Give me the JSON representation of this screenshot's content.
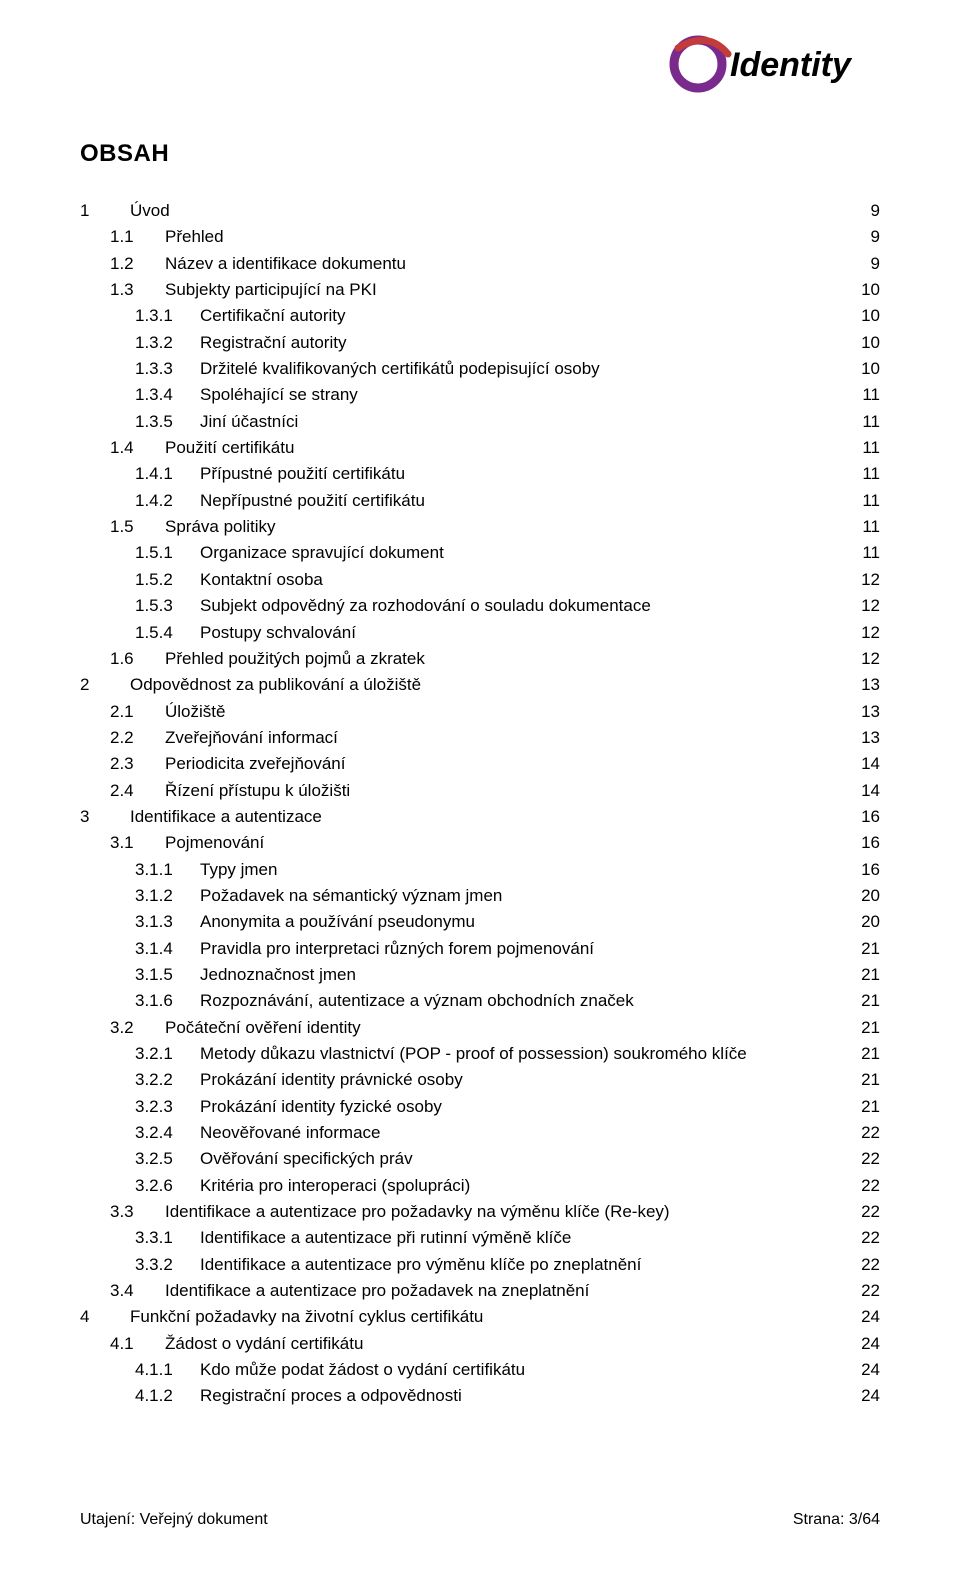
{
  "logo": {
    "brand_text": "Identity",
    "ring_color": "#7a2a8c",
    "swoosh_color": "#c43b3b",
    "text_color": "#000000",
    "font_style_italic": true,
    "font_weight": "bold",
    "font_size_pt": 28
  },
  "heading": "OBSAH",
  "typography": {
    "body_font_size_pt": 12.5,
    "heading_font_size_pt": 18,
    "font_family": "Arial",
    "text_color": "#000000",
    "background_color": "#ffffff"
  },
  "toc_entries": [
    {
      "indent": 0,
      "num": "1",
      "title": "Úvod",
      "page": "9"
    },
    {
      "indent": 1,
      "num": "1.1",
      "title": "Přehled",
      "page": "9"
    },
    {
      "indent": 1,
      "num": "1.2",
      "title": "Název a identifikace dokumentu",
      "page": "9"
    },
    {
      "indent": 1,
      "num": "1.3",
      "title": "Subjekty participující na PKI",
      "page": "10"
    },
    {
      "indent": 2,
      "num": "1.3.1",
      "title": "Certifikační autority",
      "page": "10"
    },
    {
      "indent": 2,
      "num": "1.3.2",
      "title": "Registrační autority",
      "page": "10"
    },
    {
      "indent": 2,
      "num": "1.3.3",
      "title": "Držitelé kvalifikovaných certifikátů podepisující osoby",
      "page": "10"
    },
    {
      "indent": 2,
      "num": "1.3.4",
      "title": "Spoléhající se strany",
      "page": "11"
    },
    {
      "indent": 2,
      "num": "1.3.5",
      "title": "Jiní účastníci",
      "page": "11"
    },
    {
      "indent": 1,
      "num": "1.4",
      "title": "Použití certifikátu",
      "page": "11"
    },
    {
      "indent": 2,
      "num": "1.4.1",
      "title": "Přípustné použití certifikátu",
      "page": "11"
    },
    {
      "indent": 2,
      "num": "1.4.2",
      "title": "Nepřípustné použití certifikátu",
      "page": "11"
    },
    {
      "indent": 1,
      "num": "1.5",
      "title": "Správa politiky",
      "page": "11"
    },
    {
      "indent": 2,
      "num": "1.5.1",
      "title": "Organizace spravující dokument",
      "page": "11"
    },
    {
      "indent": 2,
      "num": "1.5.2",
      "title": "Kontaktní osoba",
      "page": "12"
    },
    {
      "indent": 2,
      "num": "1.5.3",
      "title": "Subjekt odpovědný za rozhodování o souladu dokumentace",
      "page": "12"
    },
    {
      "indent": 2,
      "num": "1.5.4",
      "title": "Postupy schvalování",
      "page": "12"
    },
    {
      "indent": 1,
      "num": "1.6",
      "title": "Přehled použitých pojmů a zkratek",
      "page": "12"
    },
    {
      "indent": 0,
      "num": "2",
      "title": "Odpovědnost za publikování a úložiště",
      "page": "13"
    },
    {
      "indent": 1,
      "num": "2.1",
      "title": "Úložiště",
      "page": "13"
    },
    {
      "indent": 1,
      "num": "2.2",
      "title": "Zveřejňování informací",
      "page": "13"
    },
    {
      "indent": 1,
      "num": "2.3",
      "title": "Periodicita zveřejňování",
      "page": "14"
    },
    {
      "indent": 1,
      "num": "2.4",
      "title": "Řízení přístupu k úložišti",
      "page": "14"
    },
    {
      "indent": 0,
      "num": "3",
      "title": "Identifikace a autentizace",
      "page": "16"
    },
    {
      "indent": 1,
      "num": "3.1",
      "title": "Pojmenování",
      "page": "16"
    },
    {
      "indent": 2,
      "num": "3.1.1",
      "title": "Typy jmen",
      "page": "16"
    },
    {
      "indent": 2,
      "num": "3.1.2",
      "title": "Požadavek na sémantický význam jmen",
      "page": "20"
    },
    {
      "indent": 2,
      "num": "3.1.3",
      "title": "Anonymita a používání pseudonymu",
      "page": "20"
    },
    {
      "indent": 2,
      "num": "3.1.4",
      "title": "Pravidla pro interpretaci různých forem pojmenování",
      "page": "21"
    },
    {
      "indent": 2,
      "num": "3.1.5",
      "title": "Jednoznačnost jmen",
      "page": "21"
    },
    {
      "indent": 2,
      "num": "3.1.6",
      "title": "Rozpoznávání, autentizace a význam obchodních značek",
      "page": "21"
    },
    {
      "indent": 1,
      "num": "3.2",
      "title": "Počáteční ověření identity",
      "page": "21"
    },
    {
      "indent": 2,
      "num": "3.2.1",
      "title": "Metody důkazu vlastnictví (POP - proof of possession) soukromého klíče",
      "page": "21"
    },
    {
      "indent": 2,
      "num": "3.2.2",
      "title": "Prokázání identity právnické osoby",
      "page": "21"
    },
    {
      "indent": 2,
      "num": "3.2.3",
      "title": "Prokázání identity fyzické osoby",
      "page": "21"
    },
    {
      "indent": 2,
      "num": "3.2.4",
      "title": "Neověřované informace",
      "page": "22"
    },
    {
      "indent": 2,
      "num": "3.2.5",
      "title": "Ověřování specifických práv",
      "page": "22"
    },
    {
      "indent": 2,
      "num": "3.2.6",
      "title": "Kritéria pro interoperaci (spolupráci)",
      "page": "22"
    },
    {
      "indent": 1,
      "num": "3.3",
      "title": "Identifikace a autentizace pro požadavky na výměnu klíče (Re-key)",
      "page": "22"
    },
    {
      "indent": 2,
      "num": "3.3.1",
      "title": "Identifikace a autentizace při rutinní výměně klíče",
      "page": "22"
    },
    {
      "indent": 2,
      "num": "3.3.2",
      "title": "Identifikace a autentizace pro výměnu klíče po zneplatnění",
      "page": "22"
    },
    {
      "indent": 1,
      "num": "3.4",
      "title": "Identifikace a autentizace pro požadavek na zneplatnění",
      "page": "22"
    },
    {
      "indent": 0,
      "num": "4",
      "title": "Funkční požadavky na životní cyklus certifikátu",
      "page": "24"
    },
    {
      "indent": 1,
      "num": "4.1",
      "title": "Žádost o vydání certifikátu",
      "page": "24"
    },
    {
      "indent": 2,
      "num": "4.1.1",
      "title": "Kdo může podat žádost o vydání certifikátu",
      "page": "24"
    },
    {
      "indent": 2,
      "num": "4.1.2",
      "title": "Registrační proces a odpovědnosti",
      "page": "24"
    }
  ],
  "footer": {
    "left": "Utajení: Veřejný dokument",
    "right": "Strana: 3/64"
  }
}
